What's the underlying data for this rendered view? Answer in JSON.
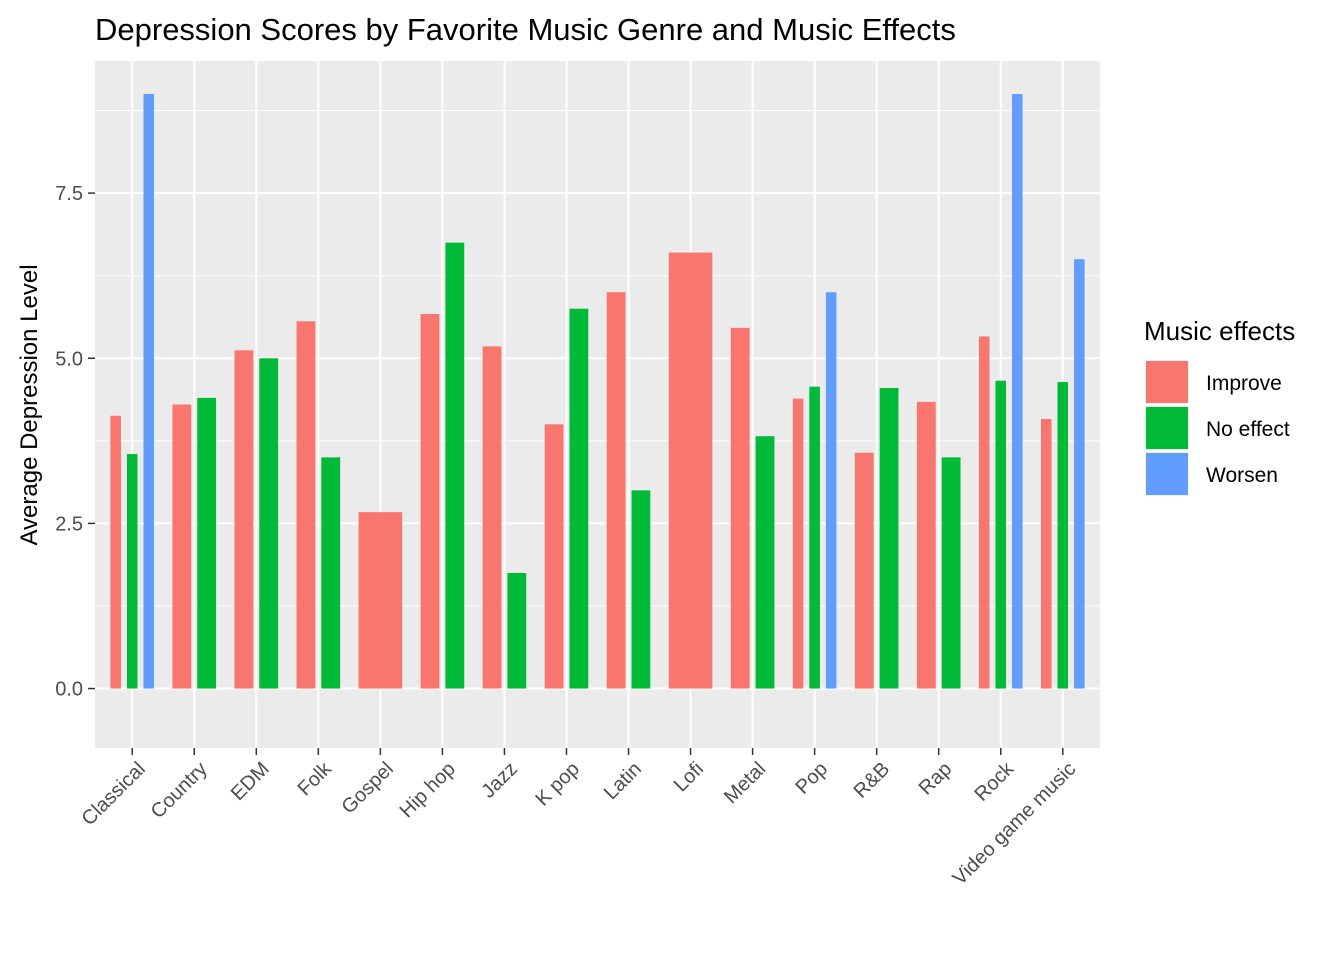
{
  "chart_data": {
    "type": "bar",
    "title": "Depression Scores by Favorite Music Genre and Music Effects",
    "xlabel": "",
    "ylabel": "Average Depression Level",
    "ylim": [
      -0.9,
      9.5
    ],
    "y_ticks": [
      0,
      2.5,
      5,
      7.5
    ],
    "y_tick_labels": [
      "0.0",
      "2.5",
      "5.0",
      "7.5"
    ],
    "grid": true,
    "background": "#ebebeb",
    "legend": {
      "title": "Music effects",
      "placement": "right",
      "items": [
        {
          "label": "Improve",
          "color": "#f8766d"
        },
        {
          "label": "No effect",
          "color": "#00ba38"
        },
        {
          "label": "Worsen",
          "color": "#619cff"
        }
      ]
    },
    "categories": [
      "Classical",
      "Country",
      "EDM",
      "Folk",
      "Gospel",
      "Hip hop",
      "Jazz",
      "K pop",
      "Latin",
      "Lofi",
      "Metal",
      "Pop",
      "R&B",
      "Rap",
      "Rock",
      "Video game music"
    ],
    "series": [
      {
        "name": "Improve",
        "color": "#f8766d",
        "values": [
          4.13,
          4.3,
          5.12,
          5.56,
          2.67,
          5.67,
          5.18,
          4.0,
          6.0,
          6.6,
          5.46,
          4.39,
          3.57,
          4.34,
          5.33,
          4.08
        ]
      },
      {
        "name": "No effect",
        "color": "#00ba38",
        "values": [
          3.55,
          4.4,
          5.0,
          3.5,
          null,
          6.75,
          1.75,
          5.75,
          3.0,
          null,
          3.82,
          4.57,
          4.55,
          3.5,
          4.66,
          4.64
        ]
      },
      {
        "name": "Worsen",
        "color": "#619cff",
        "values": [
          9.0,
          null,
          null,
          null,
          null,
          null,
          null,
          null,
          null,
          null,
          null,
          6.0,
          null,
          null,
          9.0,
          6.5
        ]
      }
    ]
  }
}
